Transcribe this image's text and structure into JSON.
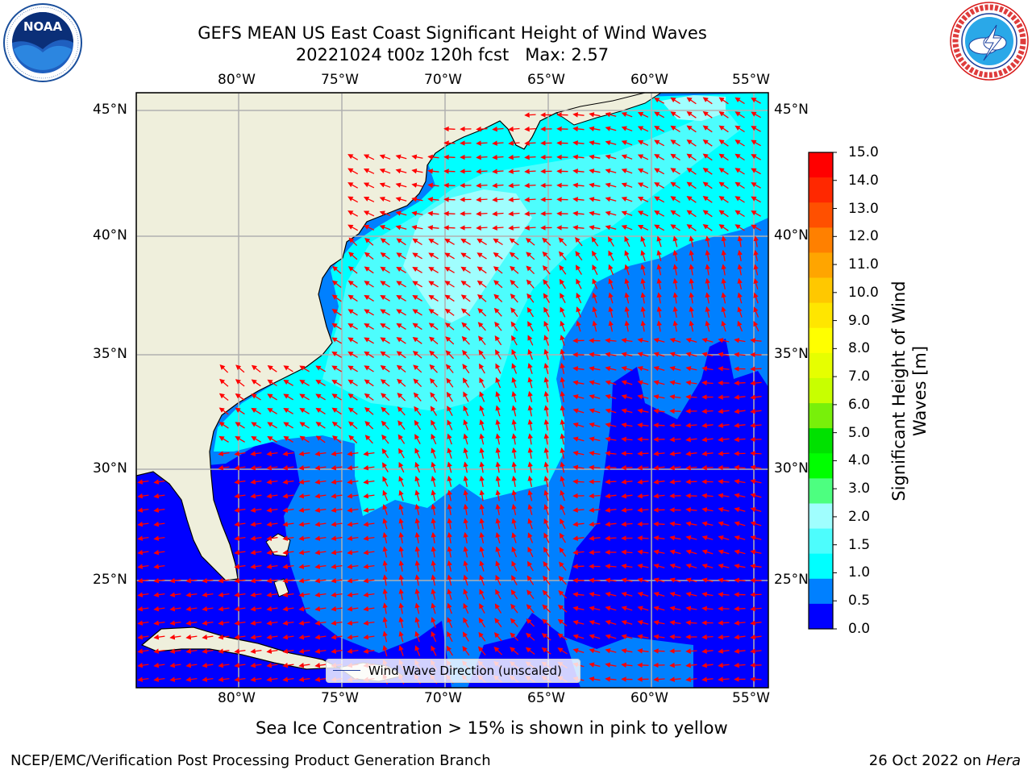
{
  "header": {
    "title_line1": "GEFS MEAN US East Coast Significant Height of Wind Waves",
    "title_line2": "20221024 t00z 120h fcst   Max: 2.57"
  },
  "logos": {
    "left": {
      "name": "NOAA",
      "text": "NOAA",
      "ring_text": "NATIONAL OCEANIC AND ATMOSPHERIC ADMINISTRATION · U.S. DEPARTMENT OF COMMERCE"
    },
    "right": {
      "name": "National Weather Service",
      "ring_text": "NATIONAL WEATHER SERVICE"
    }
  },
  "map": {
    "lon_range": [
      -85,
      -54
    ],
    "lat_range": [
      20.5,
      45.8
    ],
    "lon_ticks": [
      "80°W",
      "75°W",
      "70°W",
      "65°W",
      "60°W",
      "55°W"
    ],
    "lat_ticks": [
      "45°N",
      "40°N",
      "35°N",
      "30°N",
      "25°N"
    ],
    "grid": true,
    "colors": {
      "land": "#efefdc",
      "coast": "#000000",
      "grid": "#b0b0b0",
      "arrow": "#ff0000"
    },
    "wave_field_bands_m": [
      {
        "range": "0.0-0.5",
        "color": "#0000ff"
      },
      {
        "range": "0.5-1.0",
        "color": "#0080ff"
      },
      {
        "range": "1.0-1.5",
        "color": "#00ffff"
      },
      {
        "range": "1.5-2.0",
        "color": "#4dfdfd"
      },
      {
        "range": "2.0-3.0",
        "color": "#a0fefe"
      }
    ],
    "legend_label": "Wind Wave Direction (unscaled)"
  },
  "colorbar": {
    "label_line1": "Significant Height of Wind",
    "label_line2": "Waves [m]",
    "ticks": [
      "15.0",
      "14.0",
      "13.0",
      "12.0",
      "11.0",
      "10.0",
      "9.0",
      "8.0",
      "7.0",
      "6.0",
      "5.0",
      "4.0",
      "3.0",
      "2.0",
      "1.5",
      "1.0",
      "0.5",
      "0.0"
    ],
    "colors_top_to_bottom": [
      "#ff0000",
      "#ff2800",
      "#ff5000",
      "#ff8000",
      "#ffa500",
      "#ffc800",
      "#ffe600",
      "#ffff00",
      "#e6ff00",
      "#c8ff00",
      "#78f00a",
      "#00e100",
      "#00ff00",
      "#4dff80",
      "#a0fefe",
      "#4dfdfd",
      "#00ffff",
      "#0080ff",
      "#0000ff"
    ]
  },
  "note": "Sea Ice Concentration > 15% is shown in pink to yellow",
  "footer": {
    "left": "NCEP/EMC/Verification Post Processing Product Generation Branch",
    "right_prefix": "26 Oct 2022 on ",
    "right_host": "Hera"
  }
}
